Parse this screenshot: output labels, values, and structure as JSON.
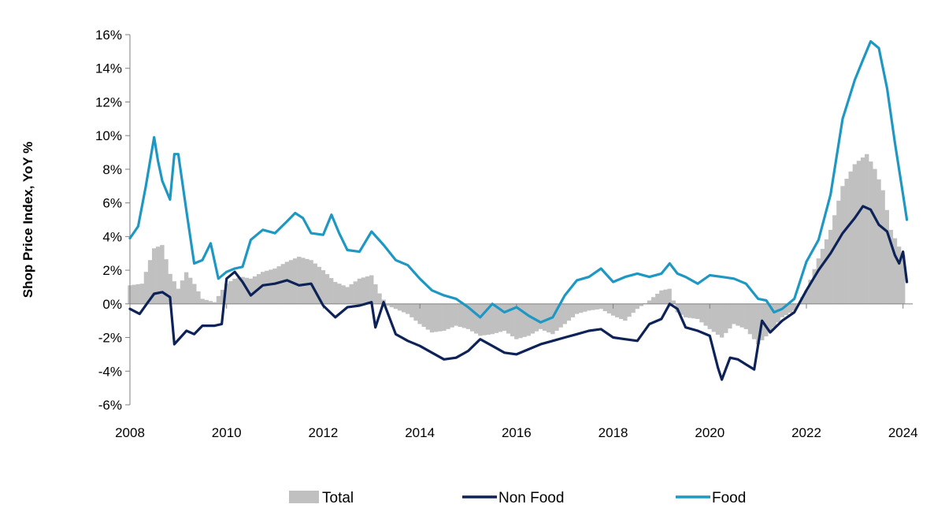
{
  "chart_data": {
    "type": "bar+line",
    "ylabel": "Shop Price Index, YoY %",
    "ylim": [
      -6,
      16
    ],
    "y_ticks": [
      {
        "value": 16,
        "label": "16%"
      },
      {
        "value": 14,
        "label": "14%"
      },
      {
        "value": 12,
        "label": "12%"
      },
      {
        "value": 10,
        "label": "10%"
      },
      {
        "value": 8,
        "label": "8%"
      },
      {
        "value": 6,
        "label": "6%"
      },
      {
        "value": 4,
        "label": "4%"
      },
      {
        "value": 2,
        "label": "2%"
      },
      {
        "value": 0,
        "label": "0%"
      },
      {
        "value": -2,
        "label": "-2%"
      },
      {
        "value": -4,
        "label": "-4%"
      },
      {
        "value": -6,
        "label": "-6%"
      }
    ],
    "x_ticks": [
      {
        "value": 2008,
        "label": "2008"
      },
      {
        "value": 2010,
        "label": "2010"
      },
      {
        "value": 2012,
        "label": "2012"
      },
      {
        "value": 2014,
        "label": "2014"
      },
      {
        "value": 2016,
        "label": "2016"
      },
      {
        "value": 2018,
        "label": "2018"
      },
      {
        "value": 2020,
        "label": "2020"
      },
      {
        "value": 2022,
        "label": "2022"
      },
      {
        "value": 2024,
        "label": "2024"
      }
    ],
    "xlim": [
      2008,
      2024.2
    ],
    "grid": false,
    "legend_position": "bottom",
    "colors": {
      "Total": "#c0c0c0",
      "Non Food": "#0d2257",
      "Food": "#1e98c3"
    },
    "series": [
      {
        "name": "Total",
        "kind": "bar",
        "x": [
          2008.0,
          2008.25,
          2008.5,
          2008.67,
          2008.83,
          2009.0,
          2009.17,
          2009.33,
          2009.5,
          2009.75,
          2010.0,
          2010.17,
          2010.33,
          2010.5,
          2010.75,
          2011.0,
          2011.25,
          2011.5,
          2011.75,
          2012.0,
          2012.25,
          2012.5,
          2012.75,
          2013.0,
          2013.17,
          2013.33,
          2013.5,
          2013.75,
          2014.0,
          2014.25,
          2014.5,
          2014.75,
          2015.0,
          2015.25,
          2015.5,
          2015.75,
          2016.0,
          2016.25,
          2016.5,
          2016.75,
          2017.0,
          2017.25,
          2017.5,
          2017.75,
          2018.0,
          2018.25,
          2018.5,
          2018.75,
          2019.0,
          2019.17,
          2019.33,
          2019.5,
          2019.75,
          2020.0,
          2020.25,
          2020.5,
          2020.75,
          2021.0,
          2021.25,
          2021.5,
          2021.75,
          2022.0,
          2022.25,
          2022.5,
          2022.75,
          2023.0,
          2023.25,
          2023.42,
          2023.58,
          2023.75,
          2024.0,
          2024.08
        ],
        "values": [
          1.1,
          1.2,
          3.3,
          3.5,
          1.8,
          0.9,
          1.9,
          1.2,
          0.3,
          0.1,
          1.2,
          1.5,
          1.6,
          1.5,
          1.9,
          2.1,
          2.5,
          2.8,
          2.6,
          2.0,
          1.3,
          1.0,
          1.5,
          1.7,
          0.6,
          -0.1,
          -0.3,
          -0.6,
          -1.2,
          -1.7,
          -1.6,
          -1.3,
          -1.5,
          -1.9,
          -1.8,
          -1.6,
          -2.1,
          -1.9,
          -1.5,
          -1.8,
          -1.2,
          -0.6,
          -0.4,
          -0.3,
          -0.7,
          -1.0,
          -0.3,
          0.2,
          0.8,
          0.9,
          -0.5,
          -0.8,
          -0.9,
          -1.5,
          -2.0,
          -1.2,
          -1.5,
          -2.4,
          -1.7,
          -0.8,
          -0.4,
          0.8,
          2.7,
          4.4,
          7.0,
          8.3,
          8.9,
          8.0,
          6.8,
          4.4,
          2.9,
          2.5
        ]
      },
      {
        "name": "Non Food",
        "kind": "line",
        "x": [
          2008.0,
          2008.2,
          2008.4,
          2008.5,
          2008.67,
          2008.83,
          2008.92,
          2009.17,
          2009.33,
          2009.5,
          2009.75,
          2009.9,
          2010.0,
          2010.17,
          2010.33,
          2010.5,
          2010.75,
          2011.0,
          2011.25,
          2011.5,
          2011.75,
          2012.0,
          2012.25,
          2012.5,
          2012.75,
          2013.0,
          2013.08,
          2013.25,
          2013.5,
          2013.75,
          2014.0,
          2014.25,
          2014.5,
          2014.75,
          2015.0,
          2015.25,
          2015.5,
          2015.75,
          2016.0,
          2016.25,
          2016.5,
          2016.75,
          2017.0,
          2017.25,
          2017.5,
          2017.75,
          2018.0,
          2018.25,
          2018.5,
          2018.75,
          2019.0,
          2019.17,
          2019.33,
          2019.5,
          2019.75,
          2020.0,
          2020.17,
          2020.25,
          2020.42,
          2020.58,
          2020.75,
          2020.92,
          2021.08,
          2021.25,
          2021.5,
          2021.75,
          2022.0,
          2022.25,
          2022.5,
          2022.75,
          2023.0,
          2023.17,
          2023.33,
          2023.5,
          2023.67,
          2023.83,
          2023.92,
          2024.0,
          2024.08
        ],
        "values": [
          -0.3,
          -0.6,
          0.2,
          0.6,
          0.7,
          0.4,
          -2.4,
          -1.6,
          -1.8,
          -1.3,
          -1.3,
          -1.2,
          1.5,
          1.9,
          1.3,
          0.5,
          1.1,
          1.2,
          1.4,
          1.1,
          1.2,
          -0.1,
          -0.8,
          -0.2,
          -0.1,
          0.1,
          -1.4,
          0.1,
          -1.8,
          -2.2,
          -2.5,
          -2.9,
          -3.3,
          -3.2,
          -2.8,
          -2.1,
          -2.5,
          -2.9,
          -3.0,
          -2.7,
          -2.4,
          -2.2,
          -2.0,
          -1.8,
          -1.6,
          -1.5,
          -2.0,
          -2.1,
          -2.2,
          -1.2,
          -0.9,
          0.0,
          -0.3,
          -1.4,
          -1.6,
          -1.9,
          -3.8,
          -4.5,
          -3.2,
          -3.3,
          -3.6,
          -3.9,
          -1.0,
          -1.7,
          -1.0,
          -0.5,
          0.8,
          2.0,
          3.0,
          4.2,
          5.1,
          5.8,
          5.6,
          4.7,
          4.3,
          2.9,
          2.4,
          3.1,
          1.3
        ]
      },
      {
        "name": "Food",
        "kind": "line",
        "x": [
          2008.0,
          2008.17,
          2008.33,
          2008.5,
          2008.58,
          2008.67,
          2008.83,
          2008.92,
          2009.0,
          2009.17,
          2009.33,
          2009.5,
          2009.67,
          2009.83,
          2010.0,
          2010.17,
          2010.33,
          2010.5,
          2010.75,
          2011.0,
          2011.25,
          2011.42,
          2011.58,
          2011.75,
          2012.0,
          2012.17,
          2012.33,
          2012.5,
          2012.75,
          2013.0,
          2013.25,
          2013.5,
          2013.75,
          2014.0,
          2014.25,
          2014.5,
          2014.75,
          2015.0,
          2015.25,
          2015.5,
          2015.75,
          2016.0,
          2016.25,
          2016.5,
          2016.75,
          2017.0,
          2017.25,
          2017.5,
          2017.75,
          2018.0,
          2018.25,
          2018.5,
          2018.75,
          2019.0,
          2019.17,
          2019.33,
          2019.5,
          2019.75,
          2020.0,
          2020.25,
          2020.5,
          2020.75,
          2021.0,
          2021.17,
          2021.33,
          2021.5,
          2021.75,
          2022.0,
          2022.25,
          2022.5,
          2022.75,
          2023.0,
          2023.17,
          2023.33,
          2023.5,
          2023.67,
          2023.83,
          2024.0,
          2024.08
        ],
        "values": [
          3.9,
          4.6,
          7.0,
          9.9,
          8.5,
          7.3,
          6.2,
          8.9,
          8.9,
          5.5,
          2.4,
          2.6,
          3.6,
          1.5,
          1.9,
          2.1,
          2.2,
          3.8,
          4.4,
          4.2,
          4.9,
          5.4,
          5.1,
          4.2,
          4.1,
          5.3,
          4.2,
          3.2,
          3.1,
          4.3,
          3.5,
          2.6,
          2.3,
          1.5,
          0.8,
          0.5,
          0.3,
          -0.2,
          -0.8,
          0.0,
          -0.5,
          -0.2,
          -0.7,
          -1.1,
          -0.8,
          0.5,
          1.4,
          1.6,
          2.1,
          1.3,
          1.6,
          1.8,
          1.6,
          1.8,
          2.4,
          1.8,
          1.6,
          1.2,
          1.7,
          1.6,
          1.5,
          1.2,
          0.3,
          0.2,
          -0.5,
          -0.3,
          0.3,
          2.5,
          3.8,
          6.5,
          11.0,
          13.3,
          14.5,
          15.6,
          15.2,
          12.8,
          9.6,
          6.5,
          5.0
        ]
      }
    ]
  }
}
